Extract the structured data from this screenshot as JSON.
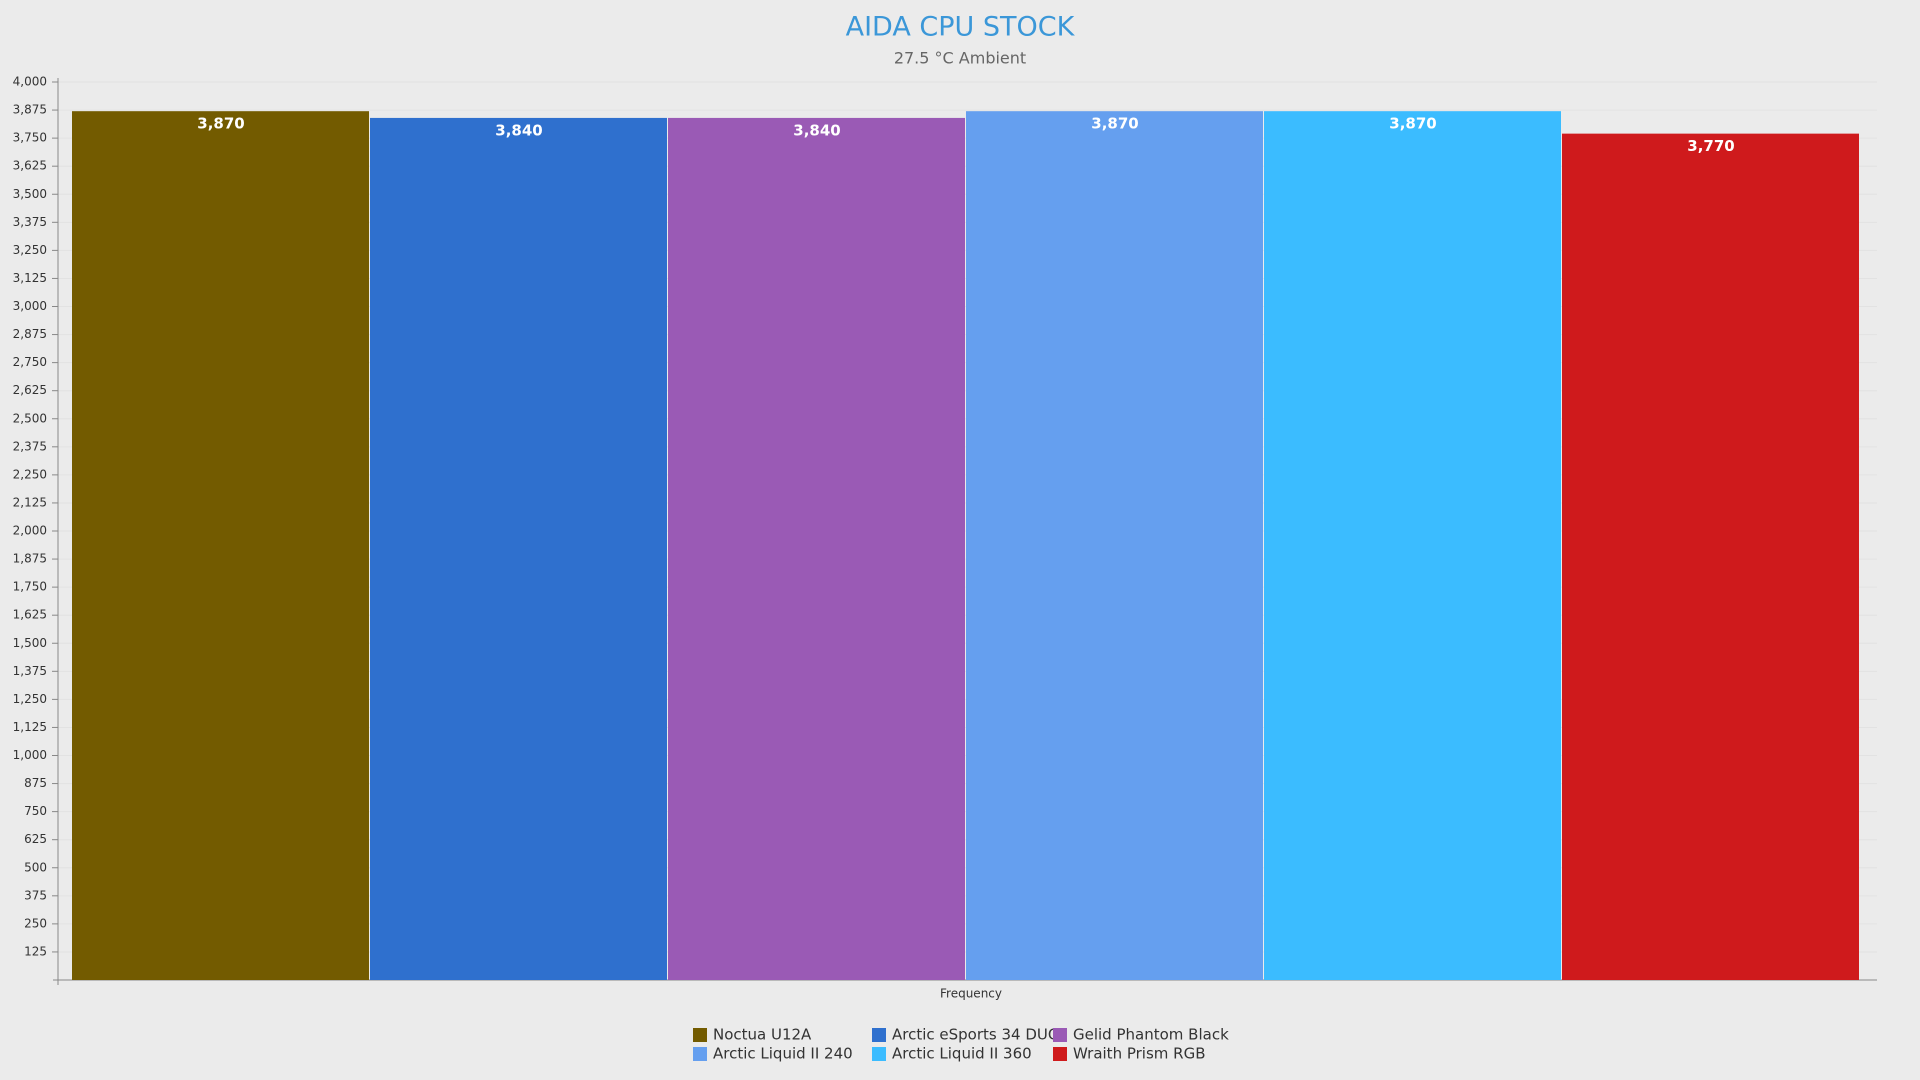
{
  "chart_data": {
    "type": "bar",
    "title": "AIDA CPU STOCK",
    "subtitle": "27.5 °C Ambient",
    "categories": [
      "Frequency"
    ],
    "series": [
      {
        "name": "Noctua U12A",
        "color": "#735b00",
        "values": [
          3870
        ],
        "value_labels": [
          "3,870"
        ]
      },
      {
        "name": "Arctic eSports 34 DUO",
        "color": "#2f70ce",
        "values": [
          3840
        ],
        "value_labels": [
          "3,840"
        ]
      },
      {
        "name": "Gelid Phantom Black",
        "color": "#9a5ab5",
        "values": [
          3840
        ],
        "value_labels": [
          "3,840"
        ]
      },
      {
        "name": "Arctic Liquid II 240",
        "color": "#659fef",
        "values": [
          3870
        ],
        "value_labels": [
          "3,870"
        ]
      },
      {
        "name": "Arctic Liquid II 360",
        "color": "#3bbcff",
        "values": [
          3870
        ],
        "value_labels": [
          "3,870"
        ]
      },
      {
        "name": "Wraith Prism RGB",
        "color": "#cf1a1c",
        "values": [
          3770
        ],
        "value_labels": [
          "3,770"
        ]
      }
    ],
    "ylim": [
      0,
      4000
    ],
    "yticks": [
      125,
      250,
      375,
      500,
      625,
      750,
      875,
      {
        "value": 1000,
        "label": "1,000"
      },
      {
        "value": 1125,
        "label": "1,125"
      },
      {
        "value": 1250,
        "label": "1,250"
      },
      {
        "value": 1375,
        "label": "1,375"
      },
      {
        "value": 1500,
        "label": "1,500"
      },
      {
        "value": 1625,
        "label": "1,625"
      },
      {
        "value": 1750,
        "label": "1,750"
      },
      {
        "value": 1875,
        "label": "1,875"
      },
      {
        "value": 2000,
        "label": "2,000"
      },
      {
        "value": 2125,
        "label": "2,125"
      },
      {
        "value": 2250,
        "label": "2,250"
      },
      {
        "value": 2375,
        "label": "2,375"
      },
      {
        "value": 2500,
        "label": "2,500"
      },
      {
        "value": 2625,
        "label": "2,625"
      },
      {
        "value": 2750,
        "label": "2,750"
      },
      {
        "value": 2875,
        "label": "2,875"
      },
      {
        "value": 3000,
        "label": "3,000"
      },
      {
        "value": 3125,
        "label": "3,125"
      },
      {
        "value": 3250,
        "label": "3,250"
      },
      {
        "value": 3375,
        "label": "3,375"
      },
      {
        "value": 3500,
        "label": "3,500"
      },
      {
        "value": 3625,
        "label": "3,625"
      },
      {
        "value": 3750,
        "label": "3,750"
      },
      {
        "value": 3875,
        "label": "3,875"
      },
      {
        "value": 4000,
        "label": "4,000"
      }
    ],
    "grid": true
  }
}
